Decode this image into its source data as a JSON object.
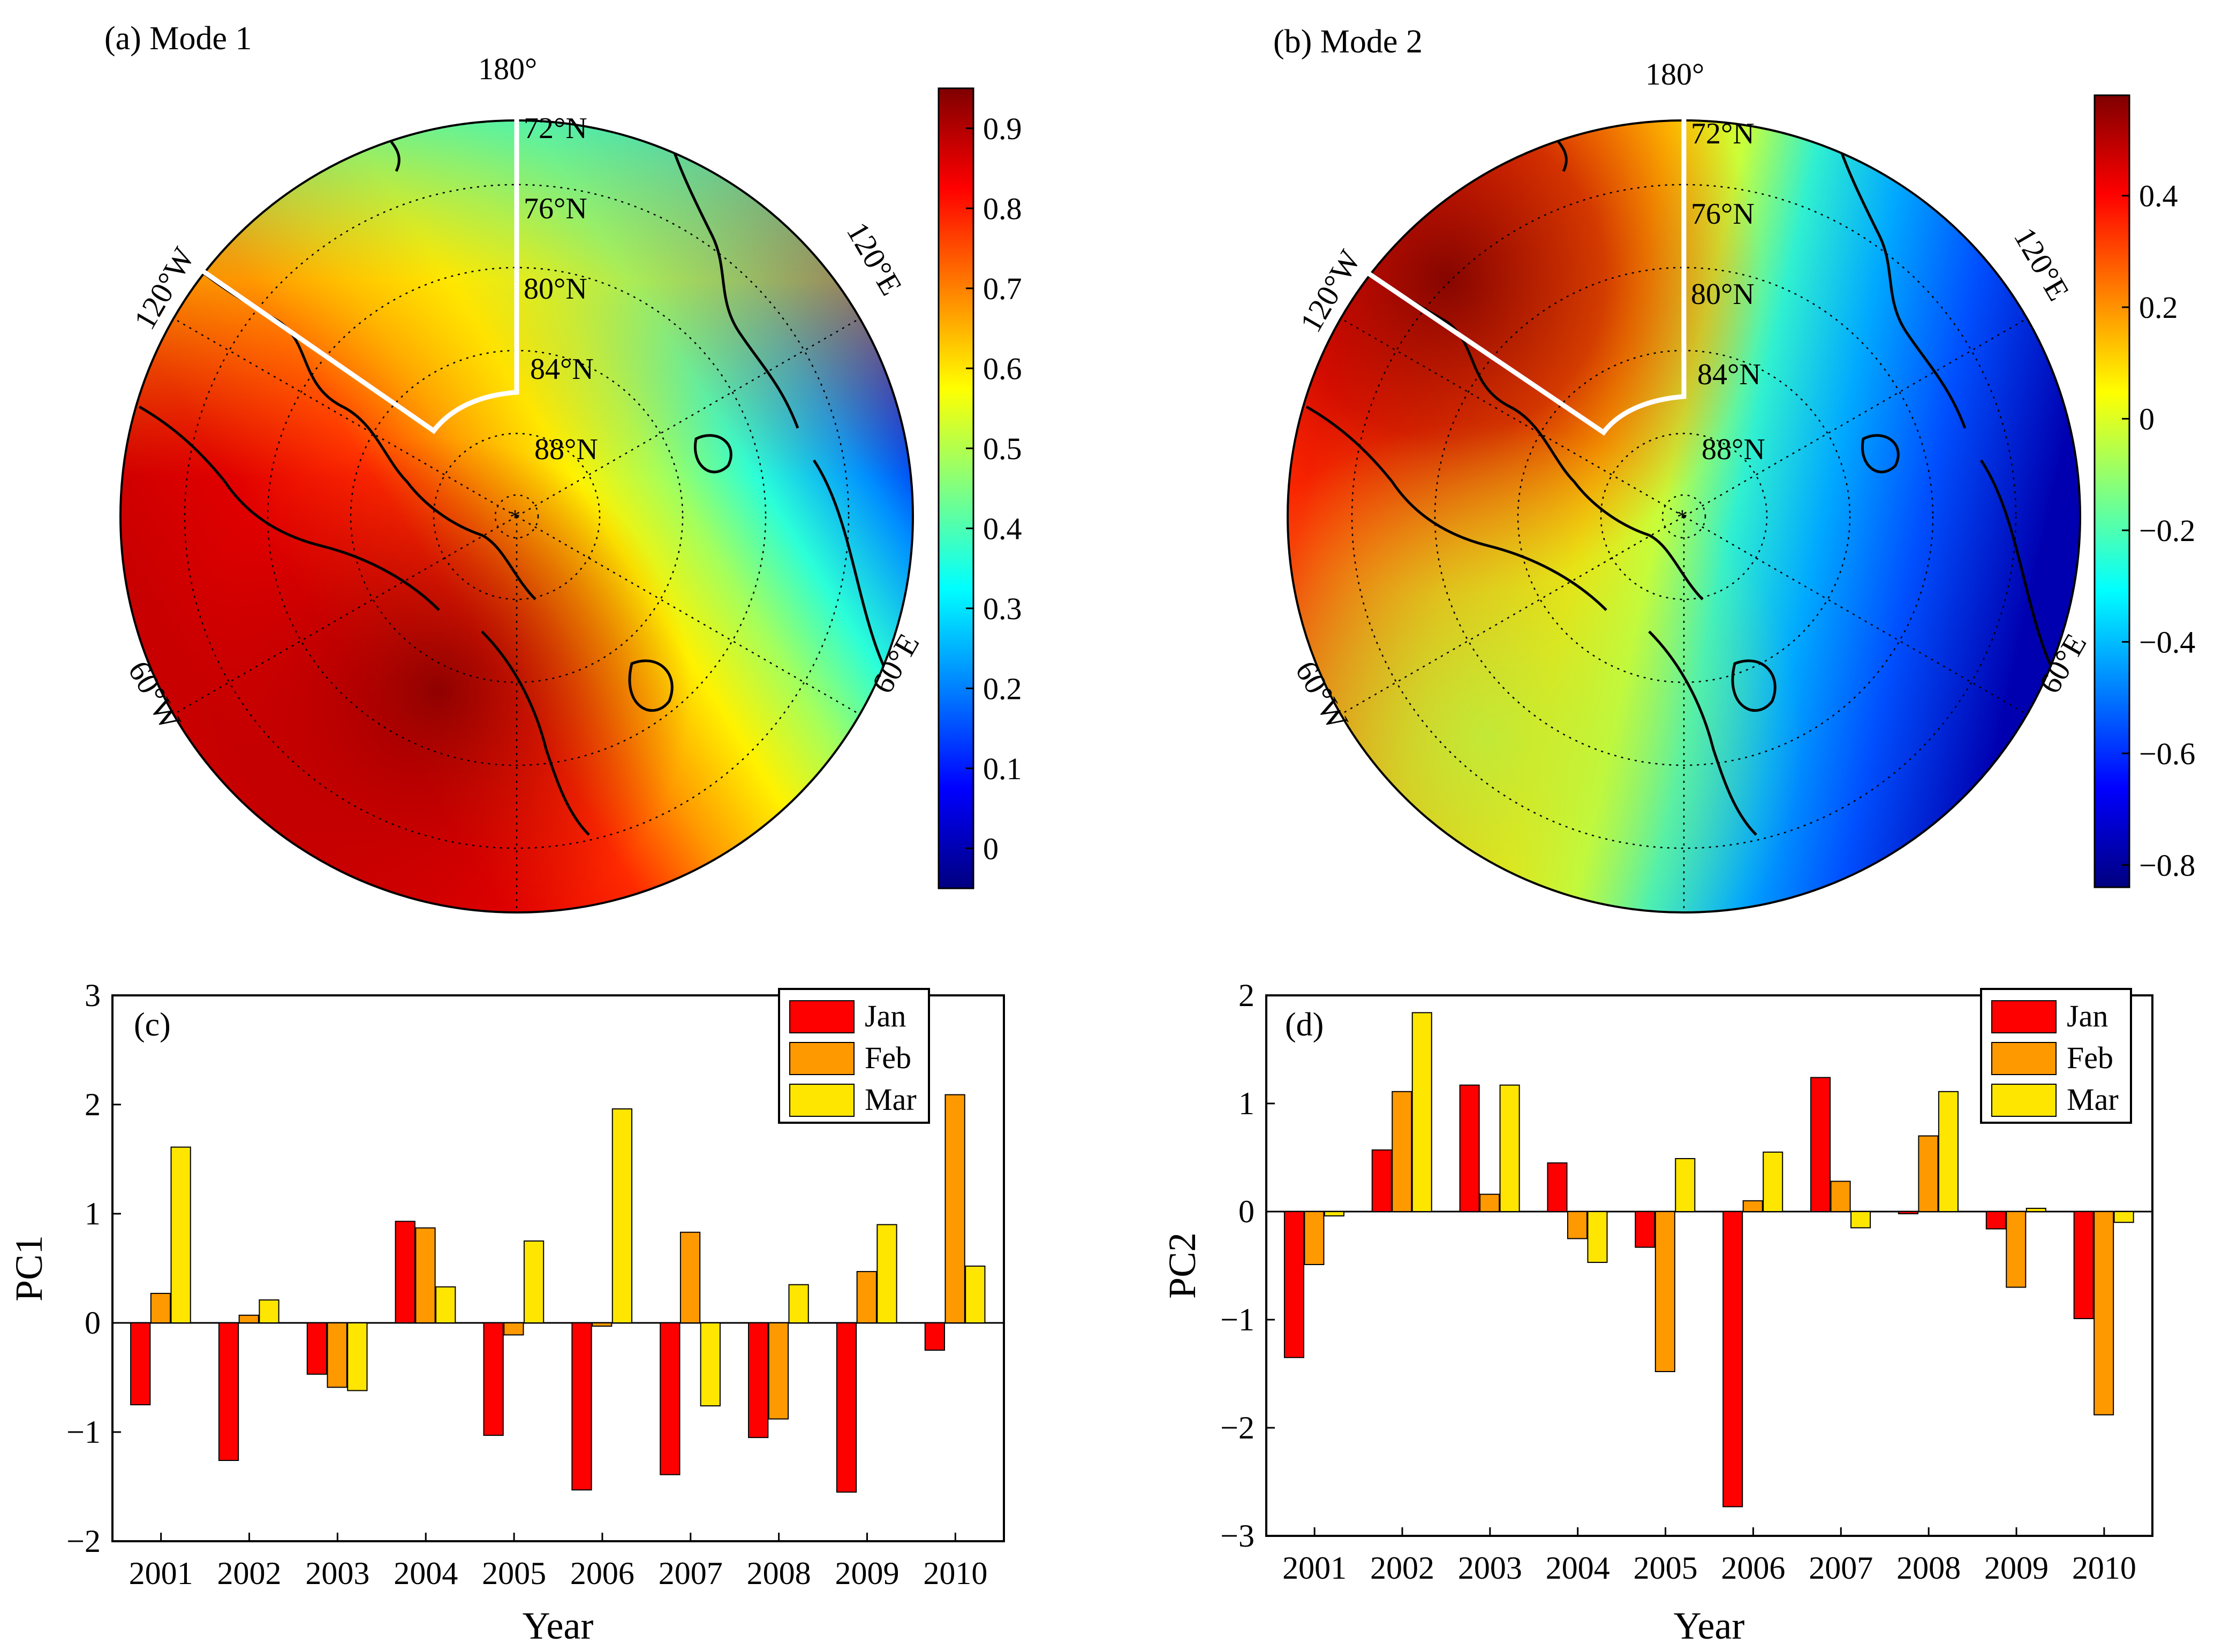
{
  "colors": {
    "jan": "#ff0000",
    "feb": "#ff9900",
    "mar": "#ffe600",
    "bar_edge": "#000000",
    "jet": [
      "#00007f",
      "#0000ff",
      "#0080ff",
      "#00ffff",
      "#80ff80",
      "#ffff00",
      "#ff8000",
      "#ff0000",
      "#7f0000"
    ]
  },
  "maps": [
    {
      "title": "(a) Mode 1",
      "lon_labels": {
        "top": "180°",
        "left_upper": "120°W",
        "right_upper": "120°E",
        "left_lower": "60°W",
        "right_lower": "60°E"
      },
      "lat_labels": [
        "72°N",
        "76°N",
        "80°N",
        "84°N",
        "88°N"
      ],
      "colorbar": {
        "min": -0.05,
        "max": 0.95,
        "ticks": [
          "0.9",
          "0.8",
          "0.7",
          "0.6",
          "0.5",
          "0.4",
          "0.3",
          "0.2",
          "0.1",
          "0"
        ],
        "tick_values": [
          0.9,
          0.8,
          0.7,
          0.6,
          0.5,
          0.4,
          0.3,
          0.2,
          0.1,
          0
        ]
      }
    },
    {
      "title": "(b) Mode 2",
      "lon_labels": {
        "top": "180°",
        "left_upper": "120°W",
        "right_upper": "120°E",
        "left_lower": "60°W",
        "right_lower": "60°E"
      },
      "lat_labels": [
        "72°N",
        "76°N",
        "80°N",
        "84°N",
        "88°N"
      ],
      "colorbar": {
        "min": -0.84,
        "max": 0.58,
        "ticks": [
          "0.4",
          "0.2",
          "0",
          "−0.2",
          "−0.4",
          "−0.6",
          "−0.8"
        ],
        "tick_values": [
          0.4,
          0.2,
          0,
          -0.2,
          -0.4,
          -0.6,
          -0.8
        ]
      }
    }
  ],
  "chart_data": [
    {
      "type": "bar",
      "panel": "(c)",
      "categories": [
        "2001",
        "2002",
        "2003",
        "2004",
        "2005",
        "2006",
        "2007",
        "2008",
        "2009",
        "2010"
      ],
      "series": [
        {
          "name": "Jan",
          "values": [
            -0.75,
            -1.26,
            -0.47,
            0.93,
            -1.03,
            -1.53,
            -1.39,
            -1.05,
            -1.55,
            -0.25
          ]
        },
        {
          "name": "Feb",
          "values": [
            0.27,
            0.07,
            -0.59,
            0.87,
            -0.11,
            -0.03,
            0.83,
            -0.88,
            0.47,
            2.09
          ]
        },
        {
          "name": "Mar",
          "values": [
            1.61,
            0.21,
            -0.62,
            0.33,
            0.75,
            1.96,
            -0.76,
            0.35,
            0.9,
            0.52
          ]
        }
      ],
      "xlabel": "Year",
      "ylabel": "PC1",
      "ylim": [
        -2,
        3
      ],
      "yticks": [
        "3",
        "2",
        "1",
        "0",
        "−1",
        "−2"
      ],
      "ytick_values": [
        3,
        2,
        1,
        0,
        -1,
        -2
      ],
      "legend": "top-right"
    },
    {
      "type": "bar",
      "panel": "(d)",
      "categories": [
        "2001",
        "2002",
        "2003",
        "2004",
        "2005",
        "2006",
        "2007",
        "2008",
        "2009",
        "2010"
      ],
      "series": [
        {
          "name": "Jan",
          "values": [
            -1.35,
            0.57,
            1.17,
            0.45,
            -0.33,
            -2.73,
            1.24,
            -0.02,
            -0.16,
            -0.99
          ]
        },
        {
          "name": "Feb",
          "values": [
            -0.49,
            1.11,
            0.16,
            -0.25,
            -1.48,
            0.1,
            0.28,
            0.7,
            -0.7,
            -1.88
          ]
        },
        {
          "name": "Mar",
          "values": [
            -0.04,
            1.84,
            1.17,
            -0.47,
            0.49,
            0.55,
            -0.15,
            1.11,
            0.03,
            -0.1
          ]
        }
      ],
      "xlabel": "Year",
      "ylabel": "PC2",
      "ylim": [
        -3,
        2
      ],
      "yticks": [
        "2",
        "1",
        "0",
        "−1",
        "−2",
        "−3"
      ],
      "ytick_values": [
        2,
        1,
        0,
        -1,
        -2,
        -3
      ],
      "legend": "top-right"
    }
  ]
}
